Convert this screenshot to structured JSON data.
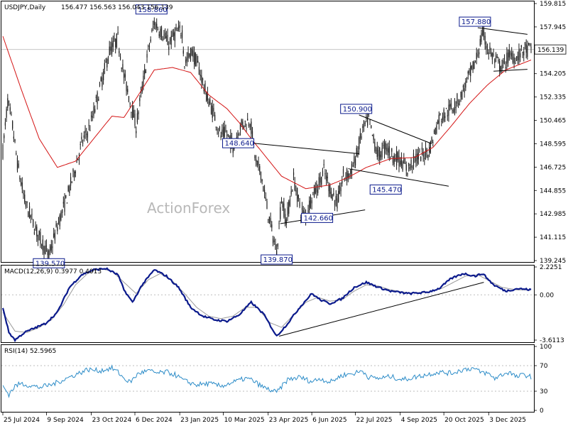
{
  "chart_data": {
    "type": "candlestick",
    "symbol_header": "USDJPY,Daily",
    "ohlc_header": "156.477 156.563 156.043 156.139",
    "watermark": "ActionForex",
    "last_price": "156.139",
    "colors": {
      "candle": "#1a1a1a",
      "ma": "#d41515",
      "macd": "#0b1a8c",
      "signal": "#9a9a9a",
      "rsi": "#2c8cc8",
      "label_border": "#0b1a8c",
      "label_text": "#0b1a8c",
      "trendline": "#000000",
      "grid": "#bdbdbd"
    },
    "x_labels": [
      "25 Jul 2024",
      "9 Sep 2024",
      "23 Oct 2024",
      "6 Dec 2024",
      "23 Jan 2025",
      "10 Mar 2025",
      "23 Apr 2025",
      "6 Jun 2025",
      "22 Jul 2025",
      "4 Sep 2025",
      "20 Oct 2025",
      "3 Dec 2025"
    ],
    "price_panel": {
      "y_ticks": [
        "159.815",
        "157.945",
        "156.075",
        "154.205",
        "152.335",
        "150.465",
        "148.595",
        "146.725",
        "144.855",
        "142.985",
        "141.115",
        "139.245"
      ],
      "y_range": [
        139.245,
        159.815
      ]
    },
    "price_anchors": [
      [
        0,
        148
      ],
      [
        4,
        152
      ],
      [
        8,
        150
      ],
      [
        12,
        147
      ],
      [
        18,
        144
      ],
      [
        22,
        143
      ],
      [
        28,
        141.5
      ],
      [
        33,
        140.6
      ],
      [
        38,
        139.57
      ],
      [
        45,
        142
      ],
      [
        52,
        144
      ],
      [
        58,
        146
      ],
      [
        65,
        148.6
      ],
      [
        72,
        150
      ],
      [
        80,
        153
      ],
      [
        88,
        156
      ],
      [
        95,
        157
      ],
      [
        100,
        154
      ],
      [
        105,
        152
      ],
      [
        110,
        150
      ],
      [
        115,
        153
      ],
      [
        120,
        156
      ],
      [
        125,
        158.3
      ],
      [
        131,
        157.5
      ],
      [
        137,
        156.6
      ],
      [
        143,
        157.5
      ],
      [
        148,
        157.6
      ],
      [
        150,
        155
      ],
      [
        156,
        156
      ],
      [
        162,
        154.6
      ],
      [
        168,
        152.5
      ],
      [
        174,
        151
      ],
      [
        180,
        149.2
      ],
      [
        184,
        149.5
      ],
      [
        190,
        148.4
      ],
      [
        196,
        150
      ],
      [
        204,
        150.5
      ],
      [
        209,
        147
      ],
      [
        213,
        146.3
      ],
      [
        217,
        144
      ],
      [
        222,
        141.6
      ],
      [
        226,
        139.87
      ],
      [
        230,
        144.2
      ],
      [
        234,
        142.4
      ],
      [
        240,
        145.8
      ],
      [
        246,
        143.2
      ],
      [
        250,
        142.8
      ],
      [
        255,
        144.4
      ],
      [
        260,
        145.2
      ],
      [
        265,
        146.4
      ],
      [
        270,
        145
      ],
      [
        276,
        143.8
      ],
      [
        281,
        146
      ],
      [
        287,
        146.2
      ],
      [
        292,
        147.7
      ],
      [
        297,
        149.7
      ],
      [
        302,
        150.6
      ],
      [
        305,
        149.2
      ],
      [
        310,
        147.6
      ],
      [
        316,
        148.4
      ],
      [
        322,
        147.6
      ],
      [
        328,
        147.3
      ],
      [
        334,
        146.5
      ],
      [
        340,
        147.4
      ],
      [
        346,
        147.7
      ],
      [
        352,
        148.1
      ],
      [
        360,
        150.6
      ],
      [
        366,
        151.1
      ],
      [
        372,
        151.6
      ],
      [
        378,
        152.4
      ],
      [
        384,
        153.8
      ],
      [
        390,
        155.1
      ],
      [
        396,
        157.4
      ],
      [
        400,
        156.3
      ],
      [
        406,
        155.3
      ],
      [
        412,
        154.6
      ],
      [
        418,
        155.7
      ],
      [
        424,
        155.5
      ],
      [
        430,
        156.1
      ],
      [
        436,
        156.14
      ]
    ],
    "ma_anchors": [
      [
        0,
        157.2
      ],
      [
        15,
        153
      ],
      [
        30,
        149
      ],
      [
        45,
        146.7
      ],
      [
        60,
        147.2
      ],
      [
        75,
        149
      ],
      [
        90,
        150.8
      ],
      [
        100,
        150.7
      ],
      [
        110,
        152.2
      ],
      [
        125,
        154.5
      ],
      [
        140,
        154.7
      ],
      [
        155,
        154.3
      ],
      [
        170,
        152.5
      ],
      [
        185,
        151.4
      ],
      [
        195,
        150.3
      ],
      [
        205,
        149
      ],
      [
        215,
        147.8
      ],
      [
        230,
        146
      ],
      [
        250,
        145
      ],
      [
        270,
        145.3
      ],
      [
        285,
        145.9
      ],
      [
        300,
        146.7
      ],
      [
        320,
        147.4
      ],
      [
        340,
        147.5
      ],
      [
        355,
        148.3
      ],
      [
        370,
        150
      ],
      [
        385,
        151.8
      ],
      [
        400,
        153.3
      ],
      [
        415,
        154.5
      ],
      [
        436,
        155.3
      ]
    ],
    "total_bars": 437,
    "labels": [
      {
        "text": "139.570",
        "bar": 38,
        "price": 139.57,
        "pos": "below"
      },
      {
        "text": "158.860",
        "bar": 125,
        "price": 158.86,
        "pos": "above"
      },
      {
        "text": "139.870",
        "bar": 226,
        "price": 139.87,
        "pos": "below"
      },
      {
        "text": "148.640",
        "bar": 206,
        "price": 148.64,
        "pos": "left"
      },
      {
        "text": "142.660",
        "bar": 250,
        "price": 142.66,
        "pos": "right"
      },
      {
        "text": "150.900",
        "bar": 294,
        "price": 150.9,
        "pos": "above"
      },
      {
        "text": "145.470",
        "bar": 316,
        "price": 145.47,
        "pos": "below"
      },
      {
        "text": "157.880",
        "bar": 392,
        "price": 157.88,
        "pos": "above"
      }
    ],
    "trendlines": [
      [
        [
          206,
          148.64
        ],
        [
          294,
          147.8
        ]
      ],
      [
        [
          229,
          142.2
        ],
        [
          299,
          143.3
        ]
      ],
      [
        [
          294,
          150.9
        ],
        [
          354,
          148.6
        ]
      ],
      [
        [
          285,
          146.6
        ],
        [
          368,
          145.2
        ]
      ],
      [
        [
          392,
          157.88
        ],
        [
          433,
          157.35
        ]
      ],
      [
        [
          405,
          154.4
        ],
        [
          433,
          154.55
        ]
      ]
    ],
    "macd_panel": {
      "title": "MACD(12,26,9) 0.3977 0.4013",
      "y_ticks": [
        "2.2251",
        "0.00",
        "-3.6113"
      ],
      "y_range": [
        -3.6113,
        2.2251
      ],
      "macd_anchors": [
        [
          0,
          -1
        ],
        [
          5,
          -3
        ],
        [
          10,
          -3.6
        ],
        [
          18,
          -3.0
        ],
        [
          25,
          -2.7
        ],
        [
          35,
          -2.3
        ],
        [
          45,
          -1.4
        ],
        [
          55,
          0.6
        ],
        [
          65,
          1.6
        ],
        [
          75,
          2.0
        ],
        [
          85,
          2.1
        ],
        [
          95,
          1.6
        ],
        [
          100,
          0.4
        ],
        [
          107,
          -0.6
        ],
        [
          115,
          0.8
        ],
        [
          125,
          2.0
        ],
        [
          135,
          1.5
        ],
        [
          145,
          0.6
        ],
        [
          155,
          -1.0
        ],
        [
          165,
          -1.7
        ],
        [
          175,
          -2.0
        ],
        [
          185,
          -2.1
        ],
        [
          195,
          -1.6
        ],
        [
          205,
          -0.6
        ],
        [
          215,
          -1.5
        ],
        [
          226,
          -3.3
        ],
        [
          235,
          -2.3
        ],
        [
          245,
          -1.0
        ],
        [
          255,
          0.1
        ],
        [
          262,
          -0.4
        ],
        [
          270,
          -0.7
        ],
        [
          280,
          -0.3
        ],
        [
          290,
          0.6
        ],
        [
          300,
          1.0
        ],
        [
          310,
          0.6
        ],
        [
          320,
          0.3
        ],
        [
          335,
          0.1
        ],
        [
          350,
          0.2
        ],
        [
          360,
          0.5
        ],
        [
          370,
          1.3
        ],
        [
          380,
          1.7
        ],
        [
          390,
          1.5
        ],
        [
          396,
          1.7
        ],
        [
          405,
          0.8
        ],
        [
          415,
          0.3
        ],
        [
          425,
          0.5
        ],
        [
          436,
          0.4
        ]
      ],
      "signal_anchors": [
        [
          0,
          -1.4
        ],
        [
          10,
          -2.9
        ],
        [
          20,
          -3.0
        ],
        [
          30,
          -2.6
        ],
        [
          40,
          -2.0
        ],
        [
          50,
          -0.8
        ],
        [
          60,
          0.8
        ],
        [
          70,
          1.7
        ],
        [
          80,
          2.1
        ],
        [
          90,
          1.9
        ],
        [
          100,
          1.0
        ],
        [
          110,
          0.1
        ],
        [
          120,
          1.2
        ],
        [
          130,
          1.7
        ],
        [
          140,
          1.1
        ],
        [
          150,
          0.1
        ],
        [
          160,
          -1.0
        ],
        [
          170,
          -1.7
        ],
        [
          180,
          -1.9
        ],
        [
          190,
          -1.7
        ],
        [
          200,
          -1.0
        ],
        [
          210,
          -1.0
        ],
        [
          220,
          -2.2
        ],
        [
          230,
          -2.6
        ],
        [
          240,
          -1.6
        ],
        [
          250,
          -0.6
        ],
        [
          260,
          -0.2
        ],
        [
          270,
          -0.5
        ],
        [
          280,
          -0.4
        ],
        [
          290,
          0.3
        ],
        [
          300,
          0.8
        ],
        [
          310,
          0.7
        ],
        [
          320,
          0.4
        ],
        [
          335,
          0.15
        ],
        [
          350,
          0.2
        ],
        [
          362,
          0.5
        ],
        [
          372,
          1.0
        ],
        [
          382,
          1.5
        ],
        [
          392,
          1.6
        ],
        [
          402,
          1.1
        ],
        [
          412,
          0.6
        ],
        [
          424,
          0.4
        ],
        [
          436,
          0.4
        ]
      ],
      "trendline": [
        [
          228,
          -3.3
        ],
        [
          397,
          1.0
        ]
      ]
    },
    "rsi_panel": {
      "title": "RSI(14) 52.5965",
      "y_ticks": [
        "100",
        "70",
        "30",
        "0"
      ],
      "y_range": [
        0,
        100
      ],
      "levels": [
        70,
        30
      ],
      "rsi_anchors": [
        [
          0,
          38
        ],
        [
          5,
          25
        ],
        [
          10,
          38
        ],
        [
          15,
          42
        ],
        [
          20,
          40
        ],
        [
          30,
          36
        ],
        [
          40,
          40
        ],
        [
          50,
          48
        ],
        [
          60,
          56
        ],
        [
          70,
          64
        ],
        [
          80,
          62
        ],
        [
          90,
          66
        ],
        [
          95,
          60
        ],
        [
          100,
          50
        ],
        [
          105,
          44
        ],
        [
          112,
          58
        ],
        [
          120,
          62
        ],
        [
          128,
          58
        ],
        [
          135,
          60
        ],
        [
          142,
          56
        ],
        [
          150,
          46
        ],
        [
          160,
          40
        ],
        [
          170,
          42
        ],
        [
          180,
          38
        ],
        [
          190,
          44
        ],
        [
          200,
          50
        ],
        [
          205,
          48
        ],
        [
          215,
          36
        ],
        [
          226,
          28
        ],
        [
          235,
          48
        ],
        [
          245,
          52
        ],
        [
          255,
          45
        ],
        [
          262,
          50
        ],
        [
          270,
          44
        ],
        [
          280,
          55
        ],
        [
          290,
          58
        ],
        [
          297,
          62
        ],
        [
          302,
          52
        ],
        [
          310,
          50
        ],
        [
          320,
          53
        ],
        [
          330,
          48
        ],
        [
          340,
          52
        ],
        [
          350,
          56
        ],
        [
          360,
          60
        ],
        [
          370,
          58
        ],
        [
          380,
          64
        ],
        [
          388,
          66
        ],
        [
          394,
          60
        ],
        [
          400,
          58
        ],
        [
          406,
          50
        ],
        [
          412,
          56
        ],
        [
          418,
          60
        ],
        [
          424,
          52
        ],
        [
          430,
          56
        ],
        [
          436,
          52.6
        ]
      ]
    }
  }
}
